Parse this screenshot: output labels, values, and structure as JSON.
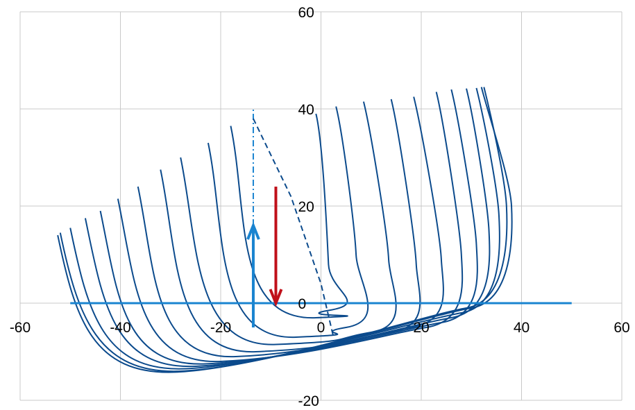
{
  "chart_data": {
    "type": "line",
    "title": "",
    "xlabel": "",
    "ylabel": "",
    "xlim": [
      -60,
      60
    ],
    "ylim": [
      -20,
      60
    ],
    "grid": true,
    "x_ticks": [
      -60,
      -40,
      -20,
      0,
      20,
      40,
      60
    ],
    "y_ticks": [
      -20,
      0,
      20,
      40,
      60
    ],
    "x_tick_labels": [
      "-60",
      "-40",
      "-20",
      "0",
      "20",
      "40",
      "60"
    ],
    "y_tick_labels": [
      "-20",
      "0",
      "20",
      "40",
      "60"
    ],
    "colors": {
      "curves": "#0b4a8c",
      "baseline": "#1a84d0",
      "up_arrow": "#1a84d0",
      "down_arrow": "#c0101a",
      "grid": "#c8c8c8"
    },
    "curve_family": [
      {
        "start": [
          -52.5,
          14.0
        ],
        "min_x": -29,
        "min_y": -14.2,
        "mid": [
          30,
          -1
        ],
        "end": [
          38,
          20
        ],
        "tip": [
          32,
          44.5
        ]
      },
      {
        "start": [
          -52.0,
          14.5
        ],
        "min_x": -28,
        "min_y": -14.0,
        "mid": [
          29,
          -1
        ],
        "end": [
          37,
          20
        ],
        "tip": [
          32.5,
          44.5
        ]
      },
      {
        "start": [
          -50.0,
          15.5
        ],
        "min_x": -27,
        "min_y": -13.5,
        "mid": [
          28,
          -2
        ],
        "end": [
          35.5,
          18
        ],
        "tip": [
          31,
          44.3
        ]
      },
      {
        "start": [
          -47.0,
          17.5
        ],
        "min_x": -25,
        "min_y": -13.0,
        "mid": [
          26,
          -3
        ],
        "end": [
          33.5,
          15
        ],
        "tip": [
          29,
          44.2
        ]
      },
      {
        "start": [
          -44.0,
          19.0
        ],
        "min_x": -23,
        "min_y": -12.5,
        "mid": [
          24,
          -4
        ],
        "end": [
          31.0,
          12
        ],
        "tip": [
          26,
          44.0
        ]
      },
      {
        "start": [
          -40.5,
          21.5
        ],
        "min_x": -20,
        "min_y": -12.0,
        "mid": [
          21,
          -5
        ],
        "end": [
          28.0,
          10
        ],
        "tip": [
          23,
          43.5
        ]
      },
      {
        "start": [
          -36.5,
          24.0
        ],
        "min_x": -17,
        "min_y": -11.0,
        "mid": [
          18,
          -5
        ],
        "end": [
          24.0,
          9
        ],
        "tip": [
          18.5,
          42.5
        ]
      },
      {
        "start": [
          -32.0,
          27.5
        ],
        "min_x": -13,
        "min_y": -10.0,
        "mid": [
          14,
          -6
        ],
        "end": [
          19.0,
          8
        ],
        "tip": [
          14,
          42.0
        ]
      },
      {
        "start": [
          -28.0,
          30.0
        ],
        "min_x": -9,
        "min_y": -8.5,
        "mid": [
          10,
          -6
        ],
        "end": [
          13.5,
          9
        ],
        "tip": [
          8.5,
          41.5
        ]
      },
      {
        "start": [
          -22.5,
          33.0
        ],
        "min_x": -5,
        "min_y": -7.0,
        "mid": [
          5,
          -5
        ],
        "end": [
          7.0,
          10
        ],
        "tip": [
          3,
          40.5
        ]
      },
      {
        "start": [
          -18.0,
          36.5
        ],
        "min_x": -1,
        "min_y": -3.0,
        "mid": [
          1.5,
          -1.5
        ],
        "end": [
          1.5,
          8
        ],
        "tip": [
          -1.0,
          39.0
        ]
      }
    ],
    "annotations": [
      {
        "type": "hline",
        "y": 0,
        "x_from": -50,
        "x_to": 50,
        "color": "#1a84d0"
      },
      {
        "type": "arrow",
        "direction": "up",
        "x": -13.5,
        "y_from": -5,
        "y_to": 16,
        "color": "#1a84d0"
      },
      {
        "type": "arrow",
        "direction": "down",
        "x": -9,
        "y_from": 24,
        "y_to": 0,
        "color": "#c0101a"
      },
      {
        "type": "dashdot",
        "points": [
          [
            -13.5,
            16
          ],
          [
            -13.5,
            40
          ]
        ],
        "color": "#1a84d0"
      },
      {
        "type": "dashed",
        "points": [
          [
            -13.5,
            38
          ],
          [
            -6,
            22
          ],
          [
            0,
            4
          ],
          [
            2.5,
            -7
          ]
        ],
        "color": "#0b4a8c"
      }
    ]
  }
}
